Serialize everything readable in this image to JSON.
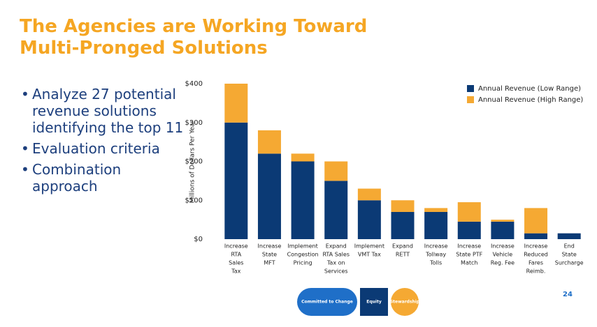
{
  "slide": {
    "title": [
      "The Agencies are Working Toward",
      "Multi-Pronged Solutions"
    ],
    "bullets": [
      [
        "Analyze 27 potential",
        "revenue solutions",
        "identifying the top 11"
      ],
      [
        "Evaluation criteria"
      ],
      [
        "Combination",
        "approach"
      ]
    ],
    "page_number": "24",
    "footer": [
      "Committed to Change",
      "Equity",
      "Stewardship"
    ]
  },
  "chart_data": {
    "type": "stacked_bar",
    "ylabel": "Millions of Dollars Per Year",
    "categories": [
      [
        "Increase",
        "RTA",
        "Sales",
        "Tax"
      ],
      [
        "Increase",
        "State",
        "MFT"
      ],
      [
        "Implement",
        "Congestion",
        "Pricing"
      ],
      [
        "Expand",
        "RTA Sales",
        "Tax on",
        "Services"
      ],
      [
        "Implement",
        "VMT Tax"
      ],
      [
        "Expand",
        "RETT"
      ],
      [
        "Increase",
        "Tollway",
        "Tolls"
      ],
      [
        "Increase",
        "State PTF",
        "Match"
      ],
      [
        "Increase",
        "Vehicle",
        "Reg. Fee"
      ],
      [
        "Increase",
        "Reduced",
        "Fares",
        "Reimb."
      ],
      [
        "End",
        "State",
        "Surcharge"
      ]
    ],
    "series": [
      {
        "name": "Annual Revenue (Low Range)",
        "color": "#0b3a75",
        "values": [
          300,
          220,
          200,
          150,
          100,
          70,
          70,
          45,
          45,
          15,
          15
        ]
      },
      {
        "name": "Annual Revenue (High Range)",
        "color": "#f5a933",
        "values": [
          100,
          60,
          20,
          50,
          30,
          30,
          10,
          50,
          5,
          65,
          0
        ]
      }
    ],
    "ylim": [
      0,
      400
    ],
    "yticks": [
      {
        "value": 0,
        "label": "$0"
      },
      {
        "value": 100,
        "label": "$100"
      },
      {
        "value": 200,
        "label": "$200"
      },
      {
        "value": 300,
        "label": "$300"
      },
      {
        "value": 400,
        "label": "$400"
      }
    ],
    "grid": false,
    "legend": "top-right"
  }
}
